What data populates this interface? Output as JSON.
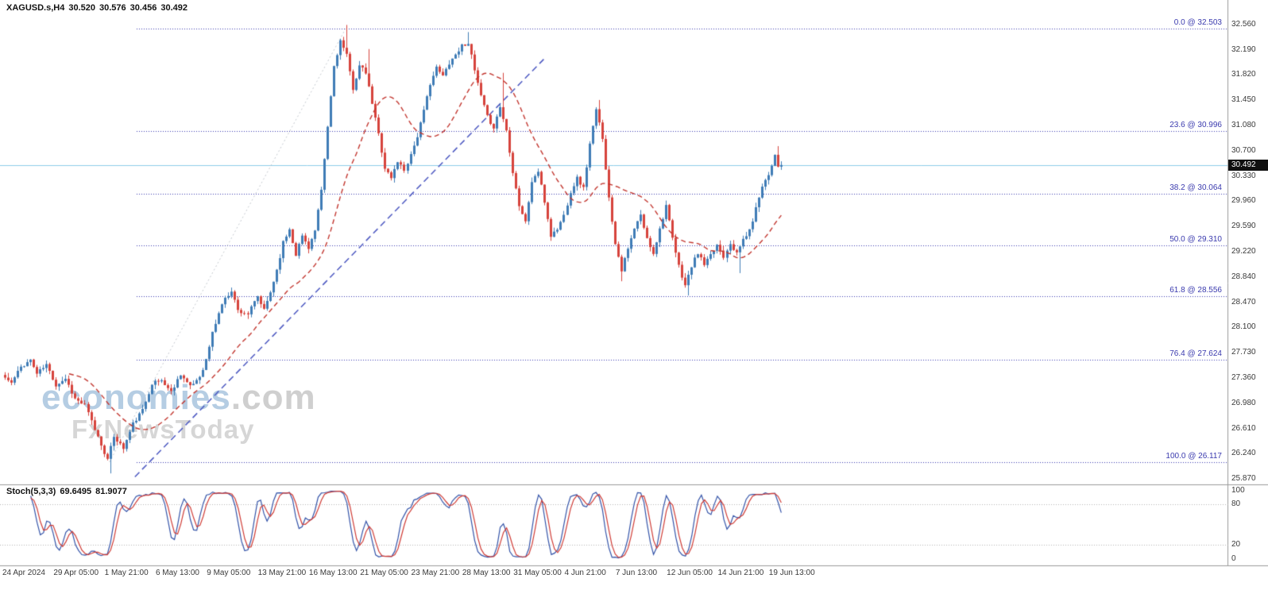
{
  "header": {
    "symbol": "XAGUSD.s,H4",
    "open": "30.520",
    "high": "30.576",
    "low": "30.456",
    "close": "30.492"
  },
  "indicator": {
    "name": "Stoch(5,3,3)",
    "k_value": "69.6495",
    "d_value": "81.9077"
  },
  "watermark": {
    "brand": "economies",
    "brand_suffix": ".com",
    "tagline": "FxNewsToday"
  },
  "chart_data": {
    "type": "candlestick_with_stochastic",
    "symbol": "XAGUSD.s",
    "timeframe": "H4",
    "title": "XAGUSD.s,H4 30.520 30.576 30.456 30.492",
    "price_axis_range": [
      25.87,
      32.56
    ],
    "last_close": 30.492,
    "bars_total": 244,
    "noise_seed": 11,
    "price_ticks": [
      "32.560",
      "32.190",
      "31.820",
      "31.450",
      "31.080",
      "30.700",
      "30.330",
      "29.960",
      "29.590",
      "29.220",
      "28.840",
      "28.470",
      "28.100",
      "27.730",
      "27.360",
      "26.980",
      "26.610",
      "26.240",
      "25.870"
    ],
    "stoch_ticks": [
      {
        "text": "100",
        "value": 100
      },
      {
        "text": "80",
        "value": 80
      },
      {
        "text": "20",
        "value": 20
      },
      {
        "text": "0",
        "value": 0
      }
    ],
    "time_labels": [
      {
        "idx": 0,
        "text": "24 Apr 2024"
      },
      {
        "idx": 16,
        "text": "29 Apr 05:00"
      },
      {
        "idx": 32,
        "text": "1 May 21:00"
      },
      {
        "idx": 48,
        "text": "6 May 13:00"
      },
      {
        "idx": 64,
        "text": "9 May 05:00"
      },
      {
        "idx": 80,
        "text": "13 May 21:00"
      },
      {
        "idx": 96,
        "text": "16 May 13:00"
      },
      {
        "idx": 112,
        "text": "21 May 05:00"
      },
      {
        "idx": 128,
        "text": "23 May 21:00"
      },
      {
        "idx": 144,
        "text": "28 May 13:00"
      },
      {
        "idx": 160,
        "text": "31 May 05:00"
      },
      {
        "idx": 176,
        "text": "4 Jun 21:00"
      },
      {
        "idx": 192,
        "text": "7 Jun 13:00"
      },
      {
        "idx": 208,
        "text": "12 Jun 05:00"
      },
      {
        "idx": 224,
        "text": "14 Jun 21:00"
      },
      {
        "idx": 240,
        "text": "19 Jun 13:00"
      }
    ],
    "fibonacci": [
      {
        "text": "0.0 @ 32.503",
        "price": 32.503
      },
      {
        "text": "23.6 @ 30.996",
        "price": 30.996
      },
      {
        "text": "38.2 @ 30.064",
        "price": 30.064
      },
      {
        "text": "50.0 @ 29.310",
        "price": 29.31
      },
      {
        "text": "61.8 @ 28.556",
        "price": 28.556
      },
      {
        "text": "76.4 @ 27.624",
        "price": 27.624
      },
      {
        "text": "100.0 @ 26.117",
        "price": 26.117
      }
    ],
    "trendlines": [
      {
        "name": "ascending-support",
        "style": "dashed",
        "color": "#4a56c0",
        "width": 1.5,
        "from": [
          41,
          25.9
        ],
        "to": [
          169,
          32.05
        ]
      },
      {
        "name": "fib-anchor-line",
        "style": "dotted",
        "color": "#c3c8ce",
        "width": 1,
        "from": [
          33,
          26.117
        ],
        "to": [
          107,
          32.503
        ]
      }
    ],
    "ma": {
      "period": 21,
      "color": "#c2362f"
    },
    "stoch": {
      "k": 5,
      "d": 3,
      "slowing": 3,
      "levels": [
        20,
        80
      ],
      "k_color": "#3353a8",
      "d_color": "#cf3b35"
    },
    "colors": {
      "bull": "#3f7cb6",
      "bear": "#d6433c",
      "current_price_line": "#8ccce8",
      "fib_line": "#3a3aae",
      "axis_text": "#3a3a3a",
      "badge_bg": "#101010",
      "badge_text": "#ffffff"
    },
    "price_path_anchors": [
      [
        0,
        27.4
      ],
      [
        3,
        27.28
      ],
      [
        6,
        27.52
      ],
      [
        9,
        27.62
      ],
      [
        11,
        27.42
      ],
      [
        14,
        27.55
      ],
      [
        17,
        27.25
      ],
      [
        20,
        27.35
      ],
      [
        23,
        27.05
      ],
      [
        26,
        26.95
      ],
      [
        29,
        26.6
      ],
      [
        33,
        26.15
      ],
      [
        35,
        26.5
      ],
      [
        38,
        26.32
      ],
      [
        41,
        26.68
      ],
      [
        44,
        26.88
      ],
      [
        47,
        27.28
      ],
      [
        50,
        27.32
      ],
      [
        53,
        27.15
      ],
      [
        56,
        27.42
      ],
      [
        59,
        27.22
      ],
      [
        62,
        27.38
      ],
      [
        64,
        27.62
      ],
      [
        66,
        28.02
      ],
      [
        69,
        28.45
      ],
      [
        72,
        28.65
      ],
      [
        74,
        28.35
      ],
      [
        77,
        28.3
      ],
      [
        80,
        28.55
      ],
      [
        82,
        28.35
      ],
      [
        84,
        28.62
      ],
      [
        86,
        28.95
      ],
      [
        88,
        29.35
      ],
      [
        90,
        29.55
      ],
      [
        92,
        29.18
      ],
      [
        94,
        29.45
      ],
      [
        96,
        29.28
      ],
      [
        98,
        29.52
      ],
      [
        100,
        30.1
      ],
      [
        102,
        31.05
      ],
      [
        104,
        31.95
      ],
      [
        106,
        32.32
      ],
      [
        108,
        32.1
      ],
      [
        110,
        31.62
      ],
      [
        112,
        31.95
      ],
      [
        114,
        31.85
      ],
      [
        116,
        31.4
      ],
      [
        118,
        30.95
      ],
      [
        120,
        30.45
      ],
      [
        122,
        30.3
      ],
      [
        124,
        30.55
      ],
      [
        126,
        30.42
      ],
      [
        128,
        30.65
      ],
      [
        130,
        30.92
      ],
      [
        132,
        31.28
      ],
      [
        134,
        31.7
      ],
      [
        136,
        31.92
      ],
      [
        138,
        31.8
      ],
      [
        140,
        32.0
      ],
      [
        142,
        32.12
      ],
      [
        144,
        32.25
      ],
      [
        146,
        32.3
      ],
      [
        148,
        31.88
      ],
      [
        150,
        31.5
      ],
      [
        152,
        31.2
      ],
      [
        154,
        31.05
      ],
      [
        156,
        31.35
      ],
      [
        158,
        31.0
      ],
      [
        160,
        30.4
      ],
      [
        162,
        29.9
      ],
      [
        164,
        29.65
      ],
      [
        166,
        30.25
      ],
      [
        168,
        30.4
      ],
      [
        170,
        29.95
      ],
      [
        172,
        29.45
      ],
      [
        174,
        29.55
      ],
      [
        176,
        29.75
      ],
      [
        178,
        30.1
      ],
      [
        180,
        30.3
      ],
      [
        182,
        30.15
      ],
      [
        184,
        30.8
      ],
      [
        186,
        31.3
      ],
      [
        188,
        30.9
      ],
      [
        190,
        30.0
      ],
      [
        192,
        29.35
      ],
      [
        194,
        28.95
      ],
      [
        196,
        29.25
      ],
      [
        198,
        29.55
      ],
      [
        200,
        29.75
      ],
      [
        202,
        29.4
      ],
      [
        204,
        29.2
      ],
      [
        206,
        29.55
      ],
      [
        208,
        29.9
      ],
      [
        210,
        29.4
      ],
      [
        212,
        29.0
      ],
      [
        214,
        28.72
      ],
      [
        216,
        29.0
      ],
      [
        218,
        29.2
      ],
      [
        220,
        29.02
      ],
      [
        222,
        29.15
      ],
      [
        224,
        29.32
      ],
      [
        226,
        29.15
      ],
      [
        228,
        29.35
      ],
      [
        230,
        29.18
      ],
      [
        232,
        29.4
      ],
      [
        234,
        29.52
      ],
      [
        236,
        29.85
      ],
      [
        238,
        30.2
      ],
      [
        240,
        30.35
      ],
      [
        242,
        30.65
      ],
      [
        243,
        30.49
      ]
    ],
    "wick_overrides": [
      [
        33,
        "low",
        25.95
      ],
      [
        107,
        "high",
        32.555
      ],
      [
        114,
        "high",
        32.2
      ],
      [
        145,
        "high",
        32.45
      ],
      [
        156,
        "high",
        31.85
      ],
      [
        186,
        "high",
        31.45
      ],
      [
        193,
        "low",
        28.78
      ],
      [
        214,
        "low",
        28.57
      ],
      [
        230,
        "low",
        28.9
      ],
      [
        242,
        "high",
        30.77
      ]
    ]
  }
}
